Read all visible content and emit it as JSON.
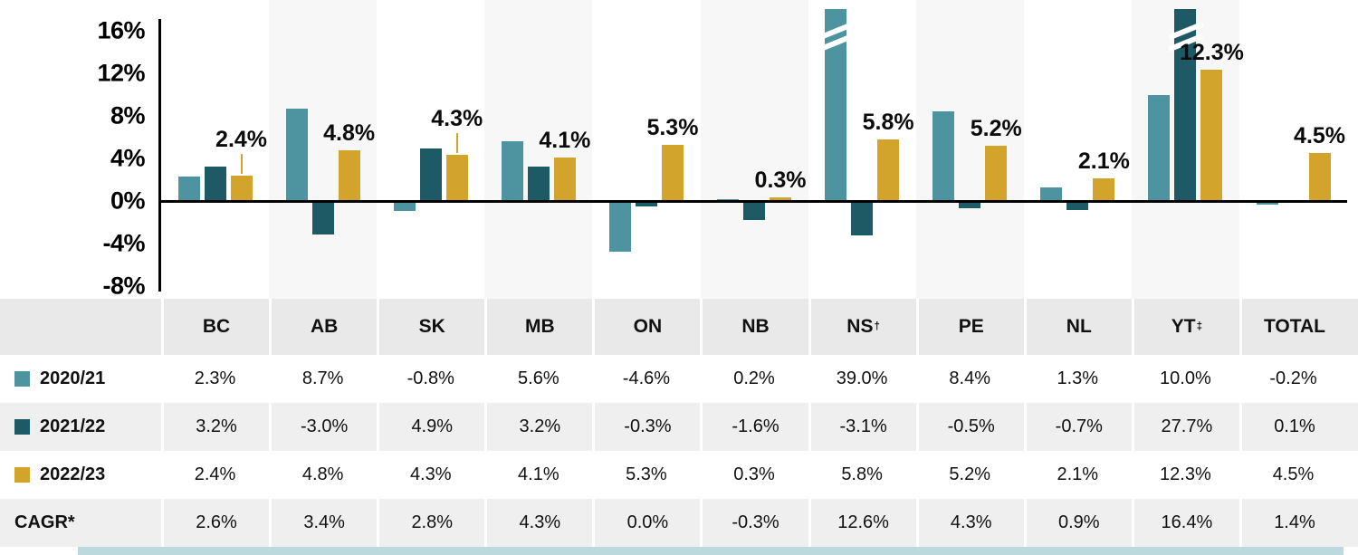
{
  "chart_data": {
    "type": "bar",
    "categories": [
      "BC",
      "AB",
      "SK",
      "MB",
      "ON",
      "NB",
      "NS",
      "PE",
      "NL",
      "YT",
      "TOTAL"
    ],
    "category_sups": [
      "",
      "",
      "",
      "",
      "",
      "",
      "†",
      "",
      "",
      "‡",
      ""
    ],
    "series": [
      {
        "name": "2020/21",
        "color": "#4E93A0",
        "values": [
          2.3,
          8.7,
          -0.8,
          5.6,
          -4.6,
          0.2,
          39.0,
          8.4,
          1.3,
          10.0,
          -0.2
        ]
      },
      {
        "name": "2021/22",
        "color": "#1E5A66",
        "values": [
          3.2,
          -3.0,
          4.9,
          3.2,
          -0.3,
          -1.6,
          -3.1,
          -0.5,
          -0.7,
          27.7,
          0.1
        ]
      },
      {
        "name": "2022/23",
        "color": "#D2A42C",
        "values": [
          2.4,
          4.8,
          4.3,
          4.1,
          5.3,
          0.3,
          5.8,
          5.2,
          2.1,
          12.3,
          4.5
        ]
      }
    ],
    "bar_labels": [
      "2.4%",
      "4.8%",
      "4.3%",
      "4.1%",
      "5.3%",
      "0.3%",
      "5.8%",
      "5.2%",
      "2.1%",
      "12.3%",
      "4.5%"
    ],
    "labeled_series": "2022/23",
    "y_ticks": [
      "16%",
      "12%",
      "8%",
      "4%",
      "0%",
      "-4%",
      "-8%"
    ],
    "ylim": [
      -9,
      18
    ],
    "grid": false,
    "legend_position": "table-left",
    "clipped_bars": [
      {
        "series": 0,
        "col": 6,
        "value": 39.0
      },
      {
        "series": 1,
        "col": 9,
        "value": 27.7
      }
    ],
    "leader_line_cols": [
      0,
      2
    ]
  },
  "table": {
    "header": [
      "",
      "BC",
      "AB",
      "SK",
      "MB",
      "ON",
      "NB",
      "NS†",
      "PE",
      "NL",
      "YT‡",
      "TOTAL"
    ],
    "rows": [
      {
        "label": "2020/21",
        "swatch": "#4E93A0",
        "cells": [
          "2.3%",
          "8.7%",
          "-0.8%",
          "5.6%",
          "-4.6%",
          "0.2%",
          "39.0%",
          "8.4%",
          "1.3%",
          "10.0%",
          "-0.2%"
        ]
      },
      {
        "label": "2021/22",
        "swatch": "#1E5A66",
        "cells": [
          "3.2%",
          "-3.0%",
          "4.9%",
          "3.2%",
          "-0.3%",
          "-1.6%",
          "-3.1%",
          "-0.5%",
          "-0.7%",
          "27.7%",
          "0.1%"
        ]
      },
      {
        "label": "2022/23",
        "swatch": "#D2A42C",
        "cells": [
          "2.4%",
          "4.8%",
          "4.3%",
          "4.1%",
          "5.3%",
          "0.3%",
          "5.8%",
          "5.2%",
          "2.1%",
          "12.3%",
          "4.5%"
        ]
      },
      {
        "label": "CAGR*",
        "swatch": null,
        "cells": [
          "2.6%",
          "3.4%",
          "2.8%",
          "4.3%",
          "0.0%",
          "-0.3%",
          "12.6%",
          "4.3%",
          "0.9%",
          "16.4%",
          "1.4%"
        ]
      }
    ]
  },
  "colors": {
    "series_2020_21": "#4E93A0",
    "series_2021_22": "#1E5A66",
    "series_2022_23": "#D2A42C",
    "table_header_bg": "#e9e9e9",
    "table_alt_row_bg": "#efefef",
    "column_stripe_bg": "#f7f7f7",
    "axis": "#000000",
    "bottom_accent": "#bcd9de"
  }
}
